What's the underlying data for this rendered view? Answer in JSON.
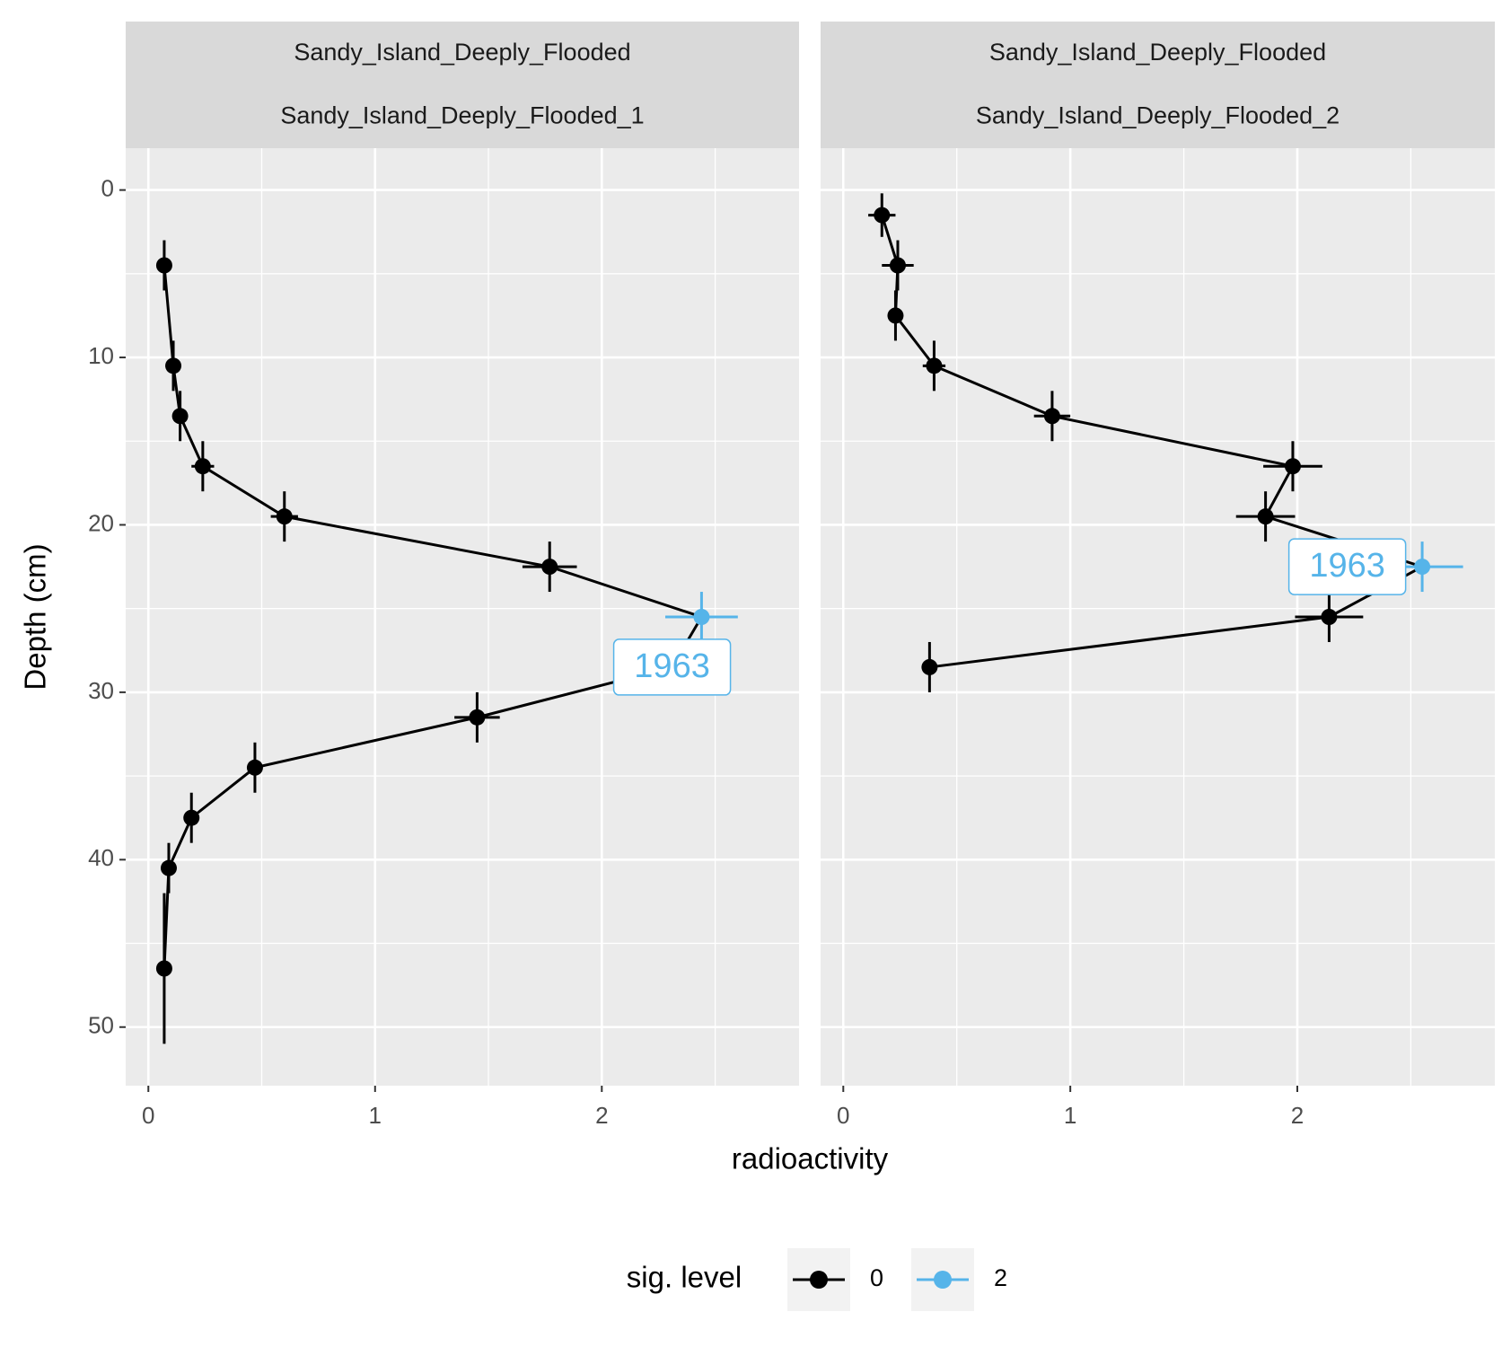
{
  "chart_data": {
    "type": "line",
    "x_label": "radioactivity",
    "y_label": "Depth (cm)",
    "legend_title": "sig. level",
    "legend_position": "bottom",
    "legend_entries": [
      {
        "name": "0",
        "color": "#000000"
      },
      {
        "name": "2",
        "color": "#56b4e9"
      }
    ],
    "line_color": "#000000",
    "grid": true,
    "y_reversed": true,
    "xlim": [
      -0.1,
      2.87
    ],
    "xticks": [
      0,
      1,
      2
    ],
    "xminor": [
      0.5,
      1.5,
      2.5
    ],
    "ylim": [
      -2.5,
      53.5
    ],
    "yticks": [
      0,
      10,
      20,
      30,
      40,
      50
    ],
    "yminor": [
      5,
      15,
      25,
      35,
      45
    ],
    "panels": [
      {
        "strips": [
          "Sandy_Island_Deeply_Flooded",
          "Sandy_Island_Deeply_Flooded_1"
        ],
        "x": [
          0.07,
          0.11,
          0.14,
          0.24,
          0.6,
          1.77,
          2.44,
          2.31,
          1.45,
          0.47,
          0.19,
          0.09,
          0.07
        ],
        "y": [
          4.5,
          10.5,
          13.5,
          16.5,
          19.5,
          22.5,
          25.5,
          28.5,
          31.5,
          34.5,
          37.5,
          40.5,
          46.5
        ],
        "xerr": [
          0.01,
          0.01,
          0.03,
          0.05,
          0.06,
          0.12,
          0.16,
          0.1,
          0.1,
          0.03,
          0.02,
          0.01,
          0.01
        ],
        "yerr": [
          1.5,
          1.5,
          1.5,
          1.5,
          1.5,
          1.5,
          1.5,
          1.5,
          1.5,
          1.5,
          1.5,
          1.5,
          4.5
        ],
        "sig": [
          0,
          0,
          0,
          0,
          0,
          0,
          2,
          0,
          0,
          0,
          0,
          0,
          0
        ],
        "annotations": [
          {
            "label": "1963",
            "x": 2.31,
            "y": 28.5
          }
        ]
      },
      {
        "strips": [
          "Sandy_Island_Deeply_Flooded",
          "Sandy_Island_Deeply_Flooded_2"
        ],
        "x": [
          0.17,
          0.24,
          0.23,
          0.4,
          0.92,
          1.98,
          1.86,
          2.55,
          2.14,
          0.38
        ],
        "y": [
          1.5,
          4.5,
          7.5,
          10.5,
          13.5,
          16.5,
          19.5,
          22.5,
          25.5,
          28.5
        ],
        "xerr": [
          0.06,
          0.07,
          0.01,
          0.05,
          0.08,
          0.13,
          0.13,
          0.18,
          0.15,
          0.01
        ],
        "yerr": [
          1.3,
          1.5,
          1.5,
          1.5,
          1.5,
          1.5,
          1.5,
          1.5,
          1.5,
          1.5
        ],
        "sig": [
          0,
          0,
          0,
          0,
          0,
          0,
          0,
          2,
          0,
          0
        ],
        "annotations": [
          {
            "label": "1963",
            "x": 2.22,
            "y": 22.5
          }
        ]
      }
    ]
  }
}
